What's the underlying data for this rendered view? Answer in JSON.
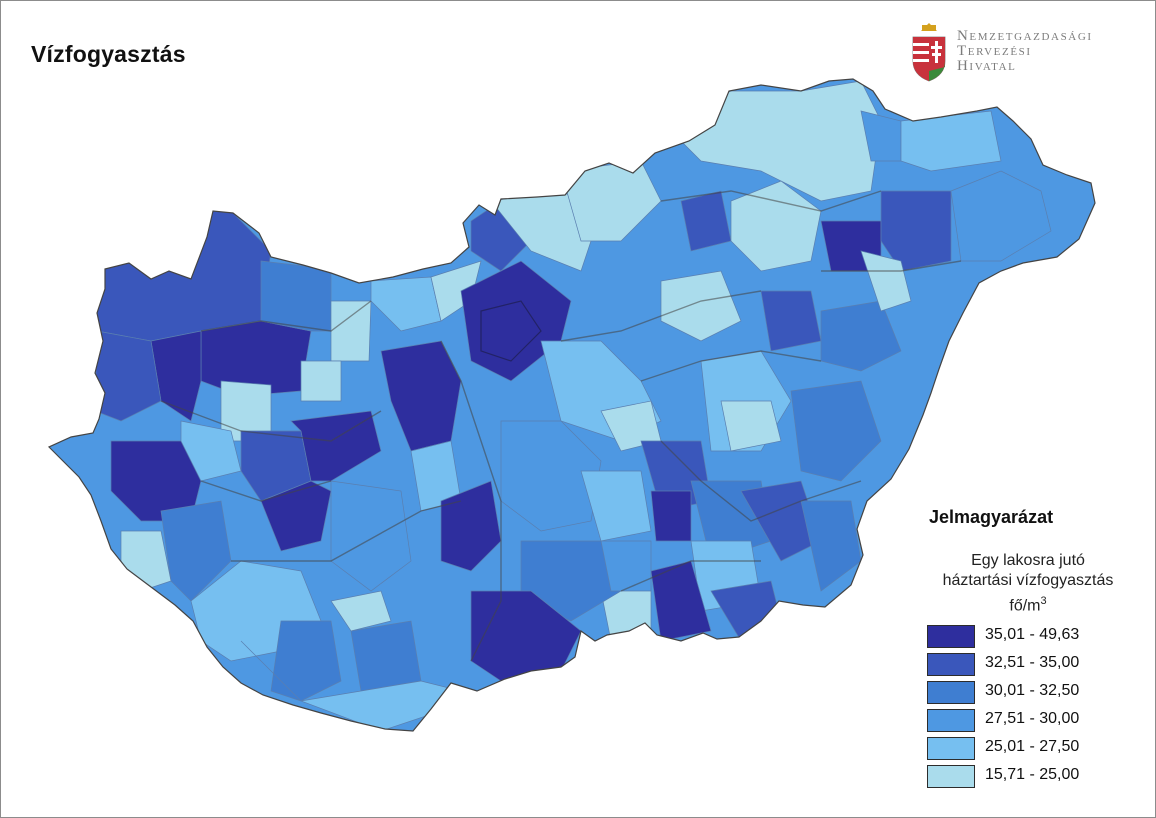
{
  "title": "Vízfogyasztás",
  "logo": {
    "lines": [
      "Nemzetgazdasági",
      "Tervezési",
      "Hivatal"
    ],
    "crest_colors": {
      "red": "#c8323c",
      "white": "#ffffff",
      "green": "#3a8a3a",
      "gold": "#d4a11e"
    }
  },
  "legend": {
    "title": "Jelmagyarázat",
    "subtitle_lines": [
      "Egy lakosra jutó",
      "háztartási vízfogyasztás",
      "fő/m3"
    ],
    "classes": [
      {
        "label": "35,01 - 49,63",
        "color": "#2e2e9e"
      },
      {
        "label": "32,51 - 35,00",
        "color": "#3a57bb"
      },
      {
        "label": "30,01 - 32,50",
        "color": "#3f7ed1"
      },
      {
        "label": "27,51 - 30,00",
        "color": "#4e98e2"
      },
      {
        "label": "25,01 - 27,50",
        "color": "#76bff0"
      },
      {
        "label": "15,71 - 25,00",
        "color": "#aadcec"
      }
    ]
  },
  "map": {
    "border_color": "#444444"
  }
}
